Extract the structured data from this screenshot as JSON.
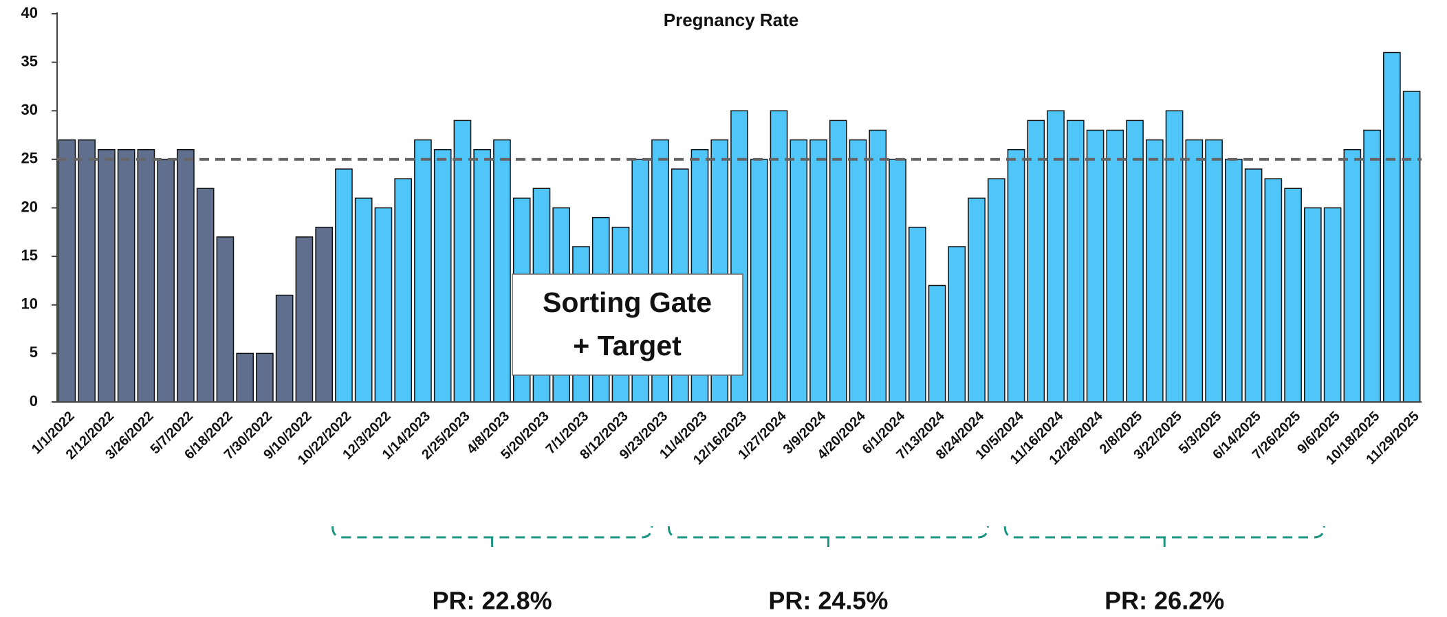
{
  "chart_data": {
    "type": "bar",
    "title": "Pregnancy Rate",
    "categories": [
      "1/1/2022",
      null,
      "2/12/2022",
      null,
      "3/26/2022",
      null,
      "5/7/2022",
      null,
      "6/18/2022",
      null,
      "7/30/2022",
      null,
      "9/10/2022",
      null,
      "10/22/2022",
      null,
      "12/3/2022",
      null,
      "1/14/2023",
      null,
      "2/25/2023",
      null,
      "4/8/2023",
      null,
      "5/20/2023",
      null,
      "7/1/2023",
      null,
      "8/12/2023",
      null,
      "9/23/2023",
      null,
      "11/4/2023",
      null,
      "12/16/2023",
      null,
      "1/27/2024",
      null,
      "3/9/2024",
      null,
      "4/20/2024",
      null,
      "6/1/2024",
      null,
      "7/13/2024",
      null,
      "8/24/2024",
      null,
      "10/5/2024",
      null,
      "11/16/2024",
      null,
      "12/28/2024",
      null,
      "2/8/2025",
      null,
      "3/22/2025",
      null,
      "5/3/2025",
      null,
      "6/14/2025",
      null,
      "7/26/2025",
      null,
      "9/6/2025",
      null,
      "10/18/2025",
      null,
      "11/29/2025"
    ],
    "series": [
      {
        "color": "#5f6f8d",
        "values": [
          27,
          27,
          26,
          26,
          26,
          25,
          26,
          22,
          17,
          5,
          5,
          11,
          17,
          18,
          null,
          null,
          null,
          null,
          null,
          null,
          null,
          null,
          null,
          null,
          null,
          null,
          null,
          null,
          null,
          null,
          null,
          null,
          null,
          null,
          null,
          null,
          null,
          null,
          null,
          null,
          null,
          null,
          null,
          null,
          null,
          null,
          null,
          null,
          null,
          null,
          null,
          null,
          null,
          null,
          null,
          null,
          null,
          null,
          null,
          null,
          null,
          null,
          null,
          null,
          null,
          null,
          null,
          null,
          null
        ]
      },
      {
        "color": "#4fc6f7",
        "values": [
          null,
          null,
          null,
          null,
          null,
          null,
          null,
          null,
          null,
          null,
          null,
          null,
          null,
          null,
          24,
          21,
          20,
          23,
          27,
          26,
          29,
          26,
          27,
          21,
          22,
          20,
          16,
          19,
          18,
          25,
          27,
          24,
          26,
          27,
          30,
          25,
          30,
          27,
          27,
          29,
          27,
          28,
          25,
          18,
          12,
          16,
          21,
          23,
          26,
          29,
          30,
          29,
          28,
          28,
          29,
          27,
          30,
          27,
          27,
          25,
          24,
          23,
          22,
          20,
          20,
          26,
          28,
          36,
          32
        ]
      }
    ],
    "ylim": [
      0,
      40
    ],
    "yticks": [
      0,
      5,
      10,
      15,
      20,
      25,
      30,
      35,
      40
    ],
    "reference_line": 25,
    "annotations": {
      "box": [
        "Sorting Gate",
        "+ Target"
      ],
      "periods": [
        "PR: 22.8%",
        "PR: 24.5%",
        "PR: 26.2%"
      ]
    }
  }
}
